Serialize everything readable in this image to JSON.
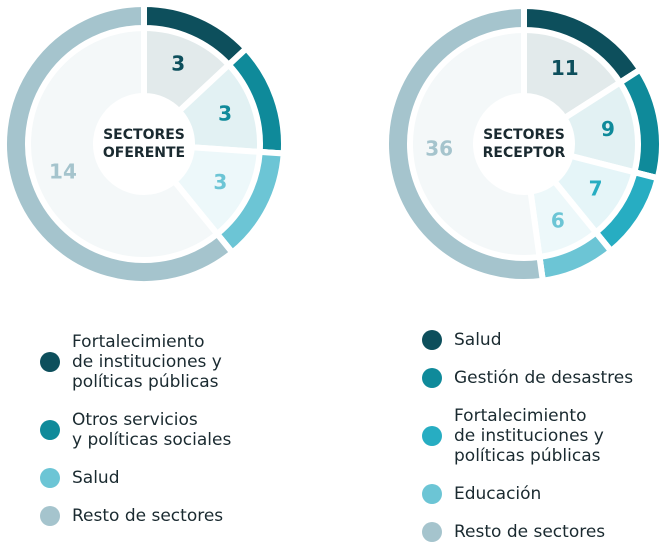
{
  "chart_data": [
    {
      "type": "pie",
      "center_label": "SECTORES\nOFERENTE",
      "categories": [
        "Fortalecimiento\nde instituciones y\npolíticas públicas",
        "Otros servicios\ny políticas sociales",
        "Salud",
        "Resto de sectores"
      ],
      "values": [
        3,
        3,
        3,
        14
      ],
      "colors": [
        "#0d4f5c",
        "#0f8a9a",
        "#6cc5d5",
        "#a5c4cd"
      ]
    },
    {
      "type": "pie",
      "center_label": "SECTORES\nRECEPTOR",
      "categories": [
        "Salud",
        "Gestión de desastres",
        "Fortalecimiento\nde instituciones y\npolíticas públicas",
        "Educación",
        "Resto de sectores"
      ],
      "values": [
        11,
        9,
        7,
        6,
        36
      ],
      "colors": [
        "#0d4f5c",
        "#0f8a9a",
        "#27adc2",
        "#6cc5d5",
        "#a5c4cd"
      ]
    }
  ]
}
